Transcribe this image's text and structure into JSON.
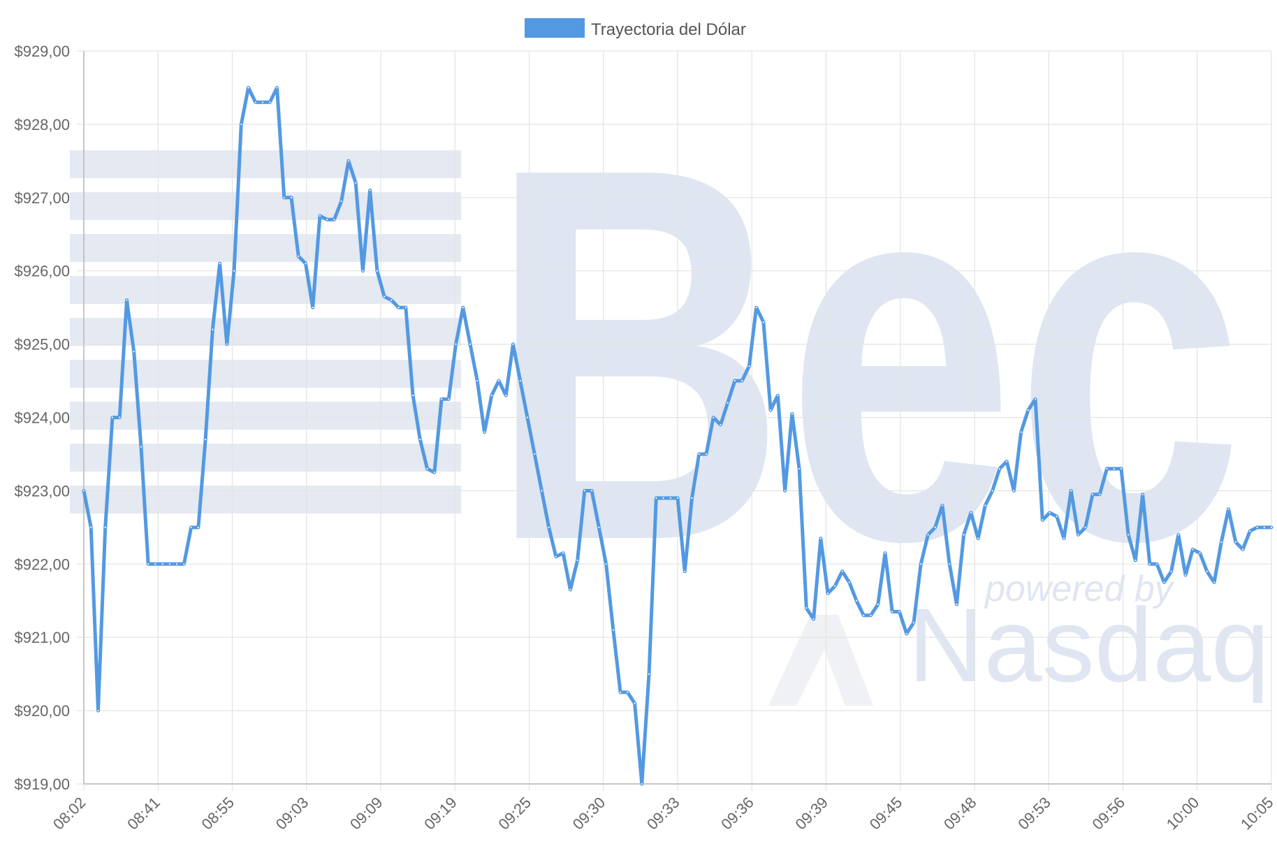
{
  "chart_data": {
    "type": "line",
    "title": "",
    "xlabel": "",
    "ylabel": "",
    "legend": {
      "position": "top-center"
    },
    "grid": true,
    "ylim": [
      919,
      929
    ],
    "y_ticks": [
      929,
      928,
      927,
      926,
      925,
      924,
      923,
      922,
      921,
      920,
      919
    ],
    "y_tick_labels": [
      "$929,00",
      "$928,00",
      "$927,00",
      "$926,00",
      "$925,00",
      "$924,00",
      "$923,00",
      "$922,00",
      "$921,00",
      "$920,00",
      "$919,00"
    ],
    "x_tick_labels": [
      "08:02",
      "08:41",
      "08:55",
      "09:03",
      "09:09",
      "09:19",
      "09:25",
      "09:30",
      "09:33",
      "09:36",
      "09:39",
      "09:45",
      "09:48",
      "09:53",
      "09:56",
      "10:00",
      "10:05"
    ],
    "series": [
      {
        "name": "Trayectoria del Dólar",
        "color": "#5399e2",
        "values": [
          923.0,
          922.5,
          920.0,
          922.5,
          924.0,
          924.0,
          925.6,
          924.9,
          923.6,
          922.0,
          922.0,
          922.0,
          922.0,
          922.0,
          922.0,
          922.5,
          922.5,
          923.7,
          925.2,
          926.1,
          925.0,
          926.0,
          928.0,
          928.5,
          928.3,
          928.3,
          928.3,
          928.5,
          927.0,
          927.0,
          926.2,
          926.1,
          925.5,
          926.75,
          926.7,
          926.7,
          926.95,
          927.5,
          927.2,
          926.0,
          927.1,
          926.0,
          925.65,
          925.6,
          925.5,
          925.5,
          924.3,
          923.7,
          923.3,
          923.25,
          924.25,
          924.25,
          925.0,
          925.5,
          925.0,
          924.5,
          923.8,
          924.3,
          924.5,
          924.3,
          925.0,
          924.5,
          924.0,
          923.5,
          923.0,
          922.5,
          922.1,
          922.15,
          921.65,
          922.05,
          923.0,
          923.0,
          922.5,
          922.0,
          921.1,
          920.25,
          920.25,
          920.1,
          919.0,
          920.5,
          922.9,
          922.9,
          922.9,
          922.9,
          921.9,
          922.9,
          923.5,
          923.5,
          924.0,
          923.9,
          924.2,
          924.5,
          924.5,
          924.7,
          925.5,
          925.3,
          924.1,
          924.3,
          923.0,
          924.05,
          923.3,
          921.4,
          921.25,
          922.35,
          921.6,
          921.7,
          921.9,
          921.75,
          921.5,
          921.3,
          921.3,
          921.45,
          922.15,
          921.35,
          921.35,
          921.05,
          921.2,
          922.0,
          922.4,
          922.5,
          922.8,
          922.0,
          921.45,
          922.4,
          922.7,
          922.35,
          922.8,
          923.0,
          923.3,
          923.4,
          923.0,
          923.8,
          924.1,
          924.25,
          922.6,
          922.7,
          922.65,
          922.35,
          923.0,
          922.4,
          922.5,
          922.95,
          922.95,
          923.3,
          923.3,
          923.3,
          922.4,
          922.05,
          922.95,
          922.0,
          922.0,
          921.75,
          921.9,
          922.4,
          921.85,
          922.2,
          922.15,
          921.9,
          921.75,
          922.3,
          922.75,
          922.3,
          922.2,
          922.45,
          922.5,
          922.5,
          922.5
        ]
      }
    ]
  },
  "watermark": {
    "brand_text": "Bec",
    "sub_text": "powered by",
    "partner_text": "Nasdaq",
    "color": "#dfe6f1"
  },
  "colors": {
    "grid": "#e3e3e3",
    "axis": "#cccccc",
    "tick_text": "#666666"
  }
}
